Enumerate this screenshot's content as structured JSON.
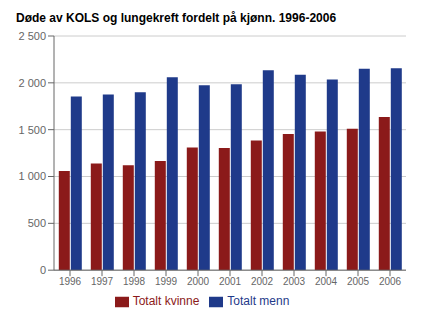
{
  "chart_data": {
    "type": "bar",
    "title": "Døde av KOLS og lungekreft fordelt på kjønn. 1996-2006",
    "categories": [
      "1996",
      "1997",
      "1998",
      "1999",
      "2000",
      "2001",
      "2002",
      "2003",
      "2004",
      "2005",
      "2006"
    ],
    "series": [
      {
        "name": "Totalt kvinne",
        "color": "#8B1A1A",
        "values": [
          1060,
          1140,
          1120,
          1165,
          1310,
          1305,
          1385,
          1455,
          1480,
          1510,
          1635
        ]
      },
      {
        "name": "Totalt menn",
        "color": "#1F3A8A",
        "values": [
          1855,
          1875,
          1900,
          2060,
          1975,
          1985,
          2135,
          2085,
          2035,
          2150,
          2155
        ]
      }
    ],
    "ylim": [
      0,
      2500
    ],
    "yticks": [
      0,
      500,
      {
        "value": 1000,
        "label": "1 000"
      },
      {
        "value": 1500,
        "label": "1 500"
      },
      {
        "value": 2000,
        "label": "2 000"
      },
      {
        "value": 2500,
        "label": "2 500"
      }
    ],
    "grid": true,
    "legend": "bottom"
  }
}
